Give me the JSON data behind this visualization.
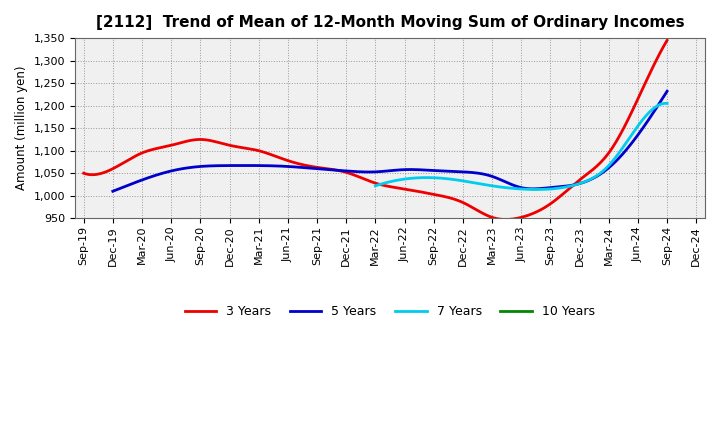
{
  "title": "[2112]  Trend of Mean of 12-Month Moving Sum of Ordinary Incomes",
  "ylabel": "Amount (million yen)",
  "ylim": [
    950,
    1350
  ],
  "yticks": [
    950,
    1000,
    1050,
    1100,
    1150,
    1200,
    1250,
    1300,
    1350
  ],
  "plot_bg_color": "#f0f0f0",
  "fig_bg_color": "#ffffff",
  "grid_color": "#999999",
  "x_labels": [
    "Sep-19",
    "Dec-19",
    "Mar-20",
    "Jun-20",
    "Sep-20",
    "Dec-20",
    "Mar-21",
    "Jun-21",
    "Sep-21",
    "Dec-21",
    "Mar-22",
    "Jun-22",
    "Sep-22",
    "Dec-22",
    "Mar-23",
    "Jun-23",
    "Sep-23",
    "Dec-23",
    "Mar-24",
    "Jun-24",
    "Sep-24",
    "Dec-24"
  ],
  "series": {
    "3 Years": {
      "color": "#ee0000",
      "data": [
        1050,
        1060,
        1095,
        1112,
        1125,
        1112,
        1100,
        1078,
        1063,
        1052,
        1028,
        1015,
        1003,
        985,
        952,
        952,
        982,
        1035,
        1095,
        1215,
        1345,
        null
      ]
    },
    "5 Years": {
      "color": "#0000cc",
      "data": [
        null,
        1010,
        1035,
        1055,
        1065,
        1067,
        1067,
        1065,
        1060,
        1055,
        1053,
        1058,
        1056,
        1053,
        1043,
        1018,
        1018,
        1027,
        1062,
        1135,
        1232,
        null
      ]
    },
    "7 Years": {
      "color": "#00ccee",
      "data": [
        null,
        null,
        null,
        null,
        null,
        null,
        null,
        null,
        null,
        null,
        1022,
        1037,
        1040,
        1033,
        1022,
        1015,
        1015,
        1027,
        1067,
        1155,
        1205,
        null
      ]
    },
    "10 Years": {
      "color": "#008800",
      "data": [
        null,
        null,
        null,
        null,
        null,
        null,
        null,
        null,
        null,
        null,
        null,
        null,
        null,
        null,
        null,
        null,
        null,
        null,
        null,
        null,
        null,
        null
      ]
    }
  },
  "legend_entries": [
    "3 Years",
    "5 Years",
    "7 Years",
    "10 Years"
  ],
  "legend_colors": [
    "#ee0000",
    "#0000cc",
    "#00ccee",
    "#008800"
  ],
  "title_fontsize": 11,
  "axis_label_fontsize": 8.5,
  "tick_fontsize": 8,
  "legend_fontsize": 9
}
